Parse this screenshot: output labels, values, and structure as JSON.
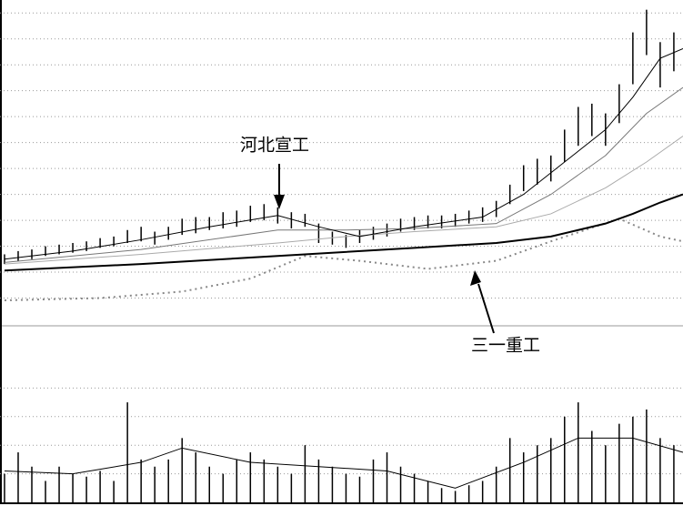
{
  "chart_data": {
    "type": "stock",
    "annotations": [
      "河北宣工",
      "三一重工"
    ],
    "xlim": [
      -0.33,
      49.67
    ],
    "ylim": [
      0,
      100
    ],
    "yticks": [
      8,
      16,
      24,
      32,
      40,
      48,
      56,
      64,
      72,
      80,
      88,
      96
    ],
    "grid": true,
    "bar_color": "#000000",
    "high": [
      21.5,
      22.5,
      23,
      24,
      24.5,
      25,
      25.5,
      26.5,
      27,
      29,
      30,
      28.5,
      30,
      32.5,
      33,
      33,
      34.5,
      35,
      36.5,
      37,
      36,
      34.5,
      34,
      31,
      28.5,
      27.5,
      29,
      30,
      31,
      32.5,
      33,
      33.5,
      33.5,
      34,
      35,
      36,
      38,
      43,
      49,
      51,
      52,
      60,
      67,
      68,
      65,
      74,
      90,
      97,
      87,
      90
    ],
    "low": [
      18.5,
      19.5,
      20,
      21,
      21.5,
      22,
      22.5,
      23.5,
      24,
      25,
      25.5,
      24.5,
      26,
      27.5,
      28,
      29,
      29.5,
      30,
      31.5,
      32,
      31,
      29.5,
      30,
      25,
      24.5,
      23.5,
      25,
      26,
      27,
      28.5,
      29,
      29.5,
      29.5,
      30,
      31,
      31.5,
      33,
      37,
      41,
      43,
      44,
      50,
      55,
      58,
      55,
      62,
      74,
      83,
      73,
      78
    ],
    "lines": [
      {
        "color": "#000000",
        "width": 2,
        "x": [
          0,
          10,
          20,
          30,
          36,
          40,
          42,
          44,
          46,
          48,
          49.67
        ],
        "values": [
          16.5,
          18.5,
          21,
          23.5,
          25,
          27,
          29,
          31,
          34,
          37.5,
          40
        ]
      },
      {
        "color": "#aaaaaa",
        "width": 1,
        "x": [
          0,
          10,
          20,
          25,
          30,
          36,
          40,
          44,
          47,
          49.67
        ],
        "values": [
          18.5,
          21.5,
          25,
          27,
          28.5,
          30,
          34,
          42,
          50,
          58
        ]
      },
      {
        "color": "#777777",
        "width": 1,
        "x": [
          0,
          10,
          20,
          25,
          30,
          36,
          40,
          44,
          47,
          49.67
        ],
        "values": [
          19,
          23,
          29,
          29,
          29.5,
          31,
          40,
          52,
          65,
          73
        ]
      },
      {
        "color": "#000000",
        "width": 1,
        "x": [
          0,
          5,
          10,
          15,
          20,
          23,
          26,
          30,
          35,
          38,
          41,
          44,
          46,
          48,
          49.67
        ],
        "values": [
          20,
          22.5,
          26,
          30,
          33.5,
          30,
          27,
          30,
          33,
          40,
          50,
          60,
          70,
          82,
          85
        ]
      }
    ],
    "dotted": {
      "color": "#888888",
      "x": [
        0,
        7,
        13,
        18,
        22,
        26,
        31,
        36,
        40,
        45,
        48,
        49.67
      ],
      "values": [
        7.3,
        8,
        10,
        14,
        21,
        19.5,
        17,
        19.5,
        25.5,
        32.5,
        27,
        25.5
      ]
    },
    "volume": [
      20,
      35,
      25,
      15,
      25,
      20,
      18,
      22,
      15,
      70,
      30,
      25,
      30,
      45,
      35,
      25,
      20,
      30,
      35,
      30,
      25,
      20,
      40,
      30,
      25,
      20,
      18,
      30,
      35,
      25,
      20,
      15,
      10,
      8,
      12,
      15,
      25,
      45,
      35,
      40,
      45,
      60,
      70,
      50,
      40,
      55,
      60,
      65,
      45,
      40
    ],
    "vlim": [
      0,
      100
    ],
    "vticks": [
      20,
      40,
      60,
      80
    ],
    "volume_line": {
      "color": "#000000",
      "x": [
        0,
        5,
        10,
        13,
        18,
        23,
        28,
        33,
        38,
        42,
        46,
        49.67
      ],
      "values": [
        22,
        20,
        28,
        38,
        28,
        25,
        22,
        10,
        28,
        45,
        45,
        35
      ]
    }
  }
}
